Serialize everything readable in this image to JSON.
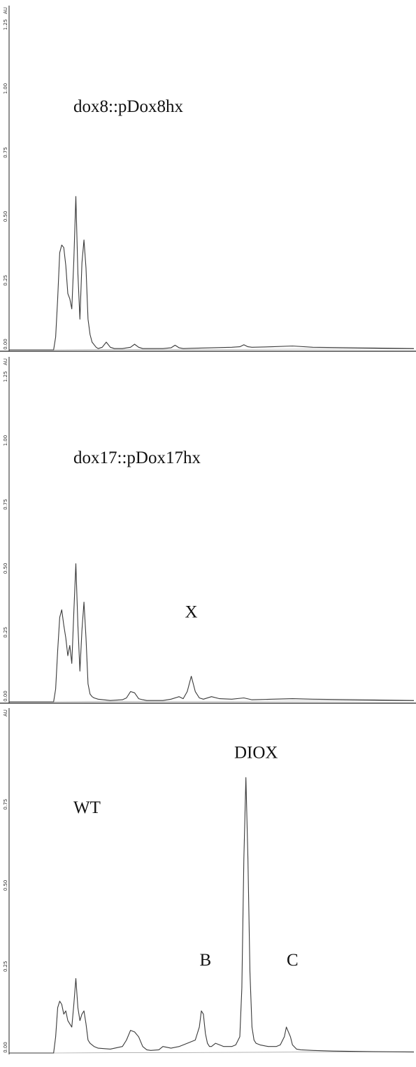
{
  "chart_data": [
    {
      "type": "line",
      "title": "dox8::pDox8hx",
      "yunit": "AU",
      "yticks": [
        "0.00",
        "0.25",
        "0.50",
        "0.75",
        "1.00",
        "1.25"
      ],
      "ylim": [
        0,
        1.3
      ],
      "xlim": [
        0,
        100
      ],
      "annotations": [],
      "series": [
        {
          "x": [
            0,
            11,
            11.5,
            12,
            12.5,
            13,
            13.5,
            14,
            14.5,
            15,
            15.5,
            16,
            16.5,
            17,
            17.5,
            18,
            18.5,
            19,
            19.5,
            20,
            20.5,
            21,
            21.5,
            22,
            23,
            24,
            25,
            26,
            27,
            28,
            30,
            31,
            32,
            33,
            35,
            38,
            40,
            41,
            42,
            43,
            45,
            50,
            55,
            57,
            58,
            59,
            60,
            65,
            70,
            75,
            100
          ],
          "y": [
            0,
            0,
            0.05,
            0.2,
            0.38,
            0.41,
            0.4,
            0.33,
            0.22,
            0.2,
            0.16,
            0.35,
            0.6,
            0.3,
            0.12,
            0.34,
            0.43,
            0.32,
            0.12,
            0.06,
            0.03,
            0.02,
            0.01,
            0.005,
            0.01,
            0.03,
            0.01,
            0.005,
            0.005,
            0.005,
            0.01,
            0.022,
            0.01,
            0.005,
            0.005,
            0.005,
            0.008,
            0.018,
            0.008,
            0.005,
            0.006,
            0.008,
            0.01,
            0.012,
            0.02,
            0.012,
            0.01,
            0.012,
            0.015,
            0.01,
            0.005
          ]
        }
      ]
    },
    {
      "type": "line",
      "title": "dox17::pDox17hx",
      "yunit": "AU",
      "yticks": [
        "0.00",
        "0.25",
        "0.50",
        "0.75",
        "1.00",
        "1.25"
      ],
      "ylim": [
        0,
        1.3
      ],
      "xlim": [
        0,
        100
      ],
      "annotations": [
        {
          "text": "X",
          "x": 45,
          "y": 0.33
        }
      ],
      "series": [
        {
          "x": [
            0,
            11,
            11.5,
            12,
            12.5,
            13,
            13.5,
            14,
            14.5,
            15,
            15.5,
            16,
            16.5,
            17,
            17.5,
            18,
            18.5,
            19,
            19.5,
            20,
            20.5,
            21,
            22,
            25,
            28,
            29,
            30,
            31,
            32,
            33,
            34,
            38,
            40,
            42,
            43,
            44,
            45,
            46,
            47,
            48,
            50,
            52,
            55,
            58,
            60,
            65,
            70,
            75,
            100
          ],
          "y": [
            0,
            0,
            0.05,
            0.2,
            0.33,
            0.36,
            0.3,
            0.25,
            0.18,
            0.22,
            0.15,
            0.35,
            0.54,
            0.3,
            0.12,
            0.28,
            0.39,
            0.25,
            0.07,
            0.03,
            0.02,
            0.015,
            0.01,
            0.005,
            0.008,
            0.015,
            0.04,
            0.035,
            0.012,
            0.008,
            0.005,
            0.005,
            0.01,
            0.02,
            0.012,
            0.04,
            0.1,
            0.04,
            0.015,
            0.01,
            0.02,
            0.012,
            0.01,
            0.015,
            0.008,
            0.01,
            0.012,
            0.01,
            0.005
          ]
        }
      ]
    },
    {
      "type": "line",
      "title": "WT",
      "yunit": "AU",
      "yticks": [
        "0.00",
        "0.25",
        "0.50",
        "0.75"
      ],
      "ylim": [
        0,
        0.95
      ],
      "xlim": [
        0,
        100
      ],
      "annotations": [
        {
          "text": "DIOX",
          "x": 61,
          "y": 0.91
        },
        {
          "text": "B",
          "x": 48.5,
          "y": 0.27
        },
        {
          "text": "C",
          "x": 70,
          "y": 0.27
        }
      ],
      "series": [
        {
          "x": [
            0,
            11,
            11.5,
            12,
            12.5,
            13,
            13.5,
            14,
            14.5,
            15,
            15.5,
            16,
            16.5,
            17,
            17.5,
            18,
            18.5,
            19,
            19.5,
            20,
            20.5,
            21,
            22,
            25,
            28,
            29,
            30,
            31,
            32,
            33,
            34,
            35,
            37,
            38,
            40,
            42,
            44,
            46,
            47,
            47.5,
            48,
            48.5,
            49,
            49.5,
            50,
            51,
            52,
            53,
            54,
            55,
            56,
            57,
            57.5,
            58,
            58.5,
            59,
            59.5,
            60,
            60.5,
            61,
            62,
            64,
            66,
            67,
            68,
            68.5,
            69,
            69.5,
            70,
            71,
            72,
            75,
            80,
            90,
            100
          ],
          "y": [
            0,
            0,
            0.05,
            0.14,
            0.16,
            0.15,
            0.12,
            0.13,
            0.1,
            0.09,
            0.08,
            0.15,
            0.23,
            0.14,
            0.1,
            0.12,
            0.13,
            0.09,
            0.04,
            0.03,
            0.025,
            0.02,
            0.015,
            0.012,
            0.02,
            0.04,
            0.07,
            0.065,
            0.05,
            0.02,
            0.01,
            0.008,
            0.01,
            0.02,
            0.015,
            0.02,
            0.03,
            0.04,
            0.08,
            0.13,
            0.12,
            0.06,
            0.03,
            0.02,
            0.02,
            0.03,
            0.025,
            0.02,
            0.02,
            0.02,
            0.025,
            0.05,
            0.2,
            0.6,
            0.85,
            0.6,
            0.25,
            0.08,
            0.04,
            0.03,
            0.025,
            0.02,
            0.02,
            0.025,
            0.05,
            0.08,
            0.065,
            0.05,
            0.025,
            0.012,
            0.01,
            0.008,
            0.006,
            0.004,
            0.003
          ]
        }
      ]
    }
  ]
}
